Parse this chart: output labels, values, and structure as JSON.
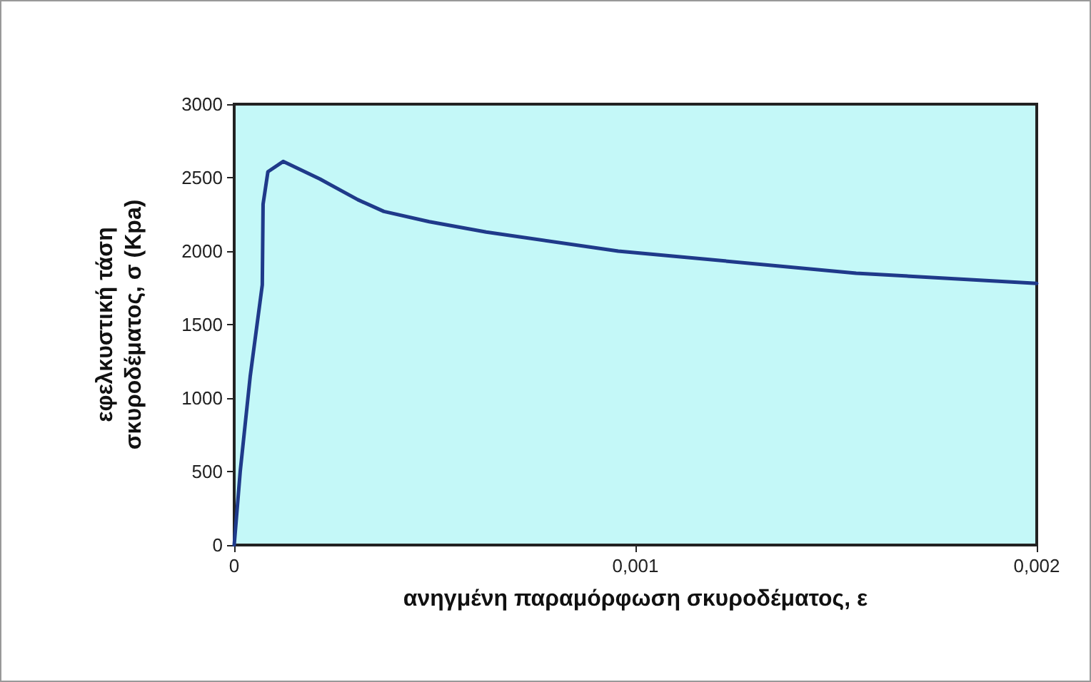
{
  "chart_data": {
    "type": "line",
    "xlabel": "ανηγμένη παραμόρφωση σκυροδέματος, ε",
    "ylabel": "εφελκυστική τάση σκυροδέματος, σ (Kpa)",
    "x": [
      0,
      1.5e-05,
      4e-05,
      7e-05,
      7.2e-05,
      8.4e-05,
      0.000122,
      0.000214,
      0.000308,
      0.000373,
      0.000486,
      0.000628,
      0.000957,
      0.00155,
      0.002
    ],
    "series": [
      {
        "color": "#1f3a8a",
        "values": [
          0,
          500,
          1150,
          1770,
          2320,
          2540,
          2610,
          2490,
          2350,
          2270,
          2200,
          2130,
          2000,
          1850,
          1780
        ]
      }
    ],
    "xlim": [
      0,
      0.002
    ],
    "xticks": [
      0,
      {
        "value": 0.001,
        "label": "0,001"
      },
      {
        "value": 0.002,
        "label": "0,002"
      }
    ],
    "ylim": [
      0,
      3000
    ],
    "yticks": [
      0,
      500,
      1000,
      1500,
      2000,
      2500,
      3000
    ],
    "grid": false,
    "marker": "none",
    "line_style": "solid"
  }
}
